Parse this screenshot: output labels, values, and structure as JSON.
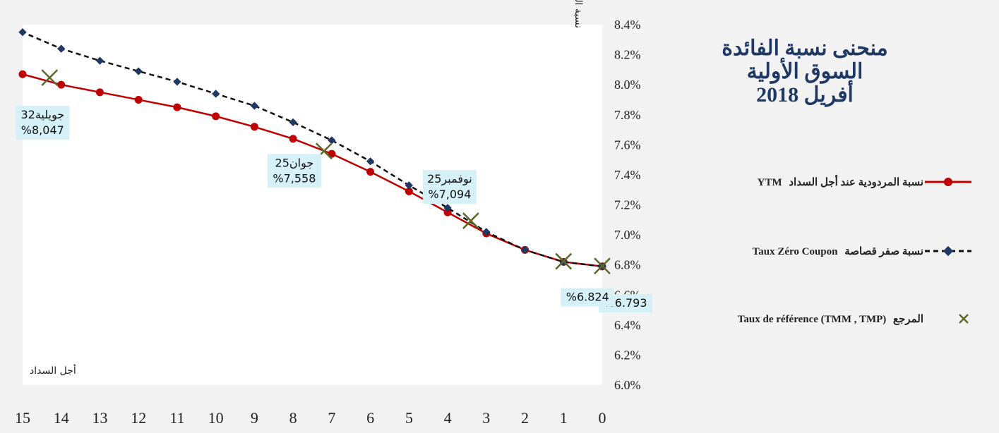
{
  "title_lines": [
    "منحنى نسبة الفائدة",
    "السوق الأولية",
    "أفريل 2018"
  ],
  "colors": {
    "ytm": "#c00000",
    "zero": "#1f3864",
    "reference": "#5b6a24",
    "label_bg": "#d6f0f7",
    "title": "#1f3864",
    "plot_bg": "#ffffff",
    "page_bg": "#f2f2f2"
  },
  "legend": [
    {
      "key": "ytm",
      "arabic": "نسبة المردودية عند أجل السداد",
      "latin": "YTM"
    },
    {
      "key": "zero",
      "arabic": "نسبة صفر قصاصة",
      "latin": "Taux Zéro Coupon"
    },
    {
      "key": "reference",
      "arabic": "المرجع",
      "latin": "Taux de référence (TMM , TMP)"
    }
  ],
  "chart_data": {
    "type": "line",
    "ylabel": "نسبة المردودية",
    "xlabel": "أجل السداد",
    "x_reversed": true,
    "xlim": [
      0,
      15
    ],
    "ylim": [
      6.0,
      8.4
    ],
    "y_ticks": [
      "6.0%",
      "6.2%",
      "6.4%",
      "6.6%",
      "6.8%",
      "7.0%",
      "7.2%",
      "7.4%",
      "7.6%",
      "7.8%",
      "8.0%",
      "8.2%",
      "8.4%"
    ],
    "x_ticks": [
      "0",
      "1",
      "2",
      "3",
      "4",
      "5",
      "6",
      "7",
      "8",
      "9",
      "10",
      "11",
      "12",
      "13",
      "14",
      "15"
    ],
    "grid": false,
    "series": [
      {
        "name": "YTM",
        "style": "solid-circle",
        "x": [
          0,
          1,
          2,
          3,
          4,
          5,
          6,
          7,
          8,
          9,
          10,
          11,
          12,
          13,
          14,
          15
        ],
        "values": [
          6.79,
          6.82,
          6.9,
          7.01,
          7.15,
          7.29,
          7.42,
          7.54,
          7.64,
          7.72,
          7.79,
          7.85,
          7.9,
          7.95,
          8.0,
          8.07
        ]
      },
      {
        "name": "Taux Zéro Coupon",
        "style": "dashed-diamond",
        "x": [
          0,
          1,
          2,
          3,
          4,
          5,
          6,
          7,
          8,
          9,
          10,
          11,
          12,
          13,
          14,
          15
        ],
        "values": [
          6.79,
          6.82,
          6.9,
          7.02,
          7.18,
          7.33,
          7.49,
          7.63,
          7.75,
          7.86,
          7.94,
          8.02,
          8.09,
          8.16,
          8.24,
          8.35
        ]
      },
      {
        "name": "Taux de référence (TMM , TMP)",
        "style": "x-marker",
        "x": [
          0,
          1,
          3.4,
          7.2,
          14.3
        ],
        "values": [
          6.793,
          6.824,
          7.094,
          7.558,
          8.047
        ]
      }
    ],
    "annotations": [
      {
        "x": 0,
        "y": 6.793,
        "lines": [
          "%6.793"
        ]
      },
      {
        "x": 1,
        "y": 6.824,
        "lines": [
          "%6.824"
        ]
      },
      {
        "x": 3.4,
        "y": 7.094,
        "lines": [
          "نوفمبر25",
          "%7,094"
        ]
      },
      {
        "x": 7.2,
        "y": 7.558,
        "lines": [
          "جوان25",
          "%7,558"
        ]
      },
      {
        "x": 14.3,
        "y": 8.047,
        "lines": [
          "جويلية32",
          "%8,047"
        ]
      }
    ]
  }
}
